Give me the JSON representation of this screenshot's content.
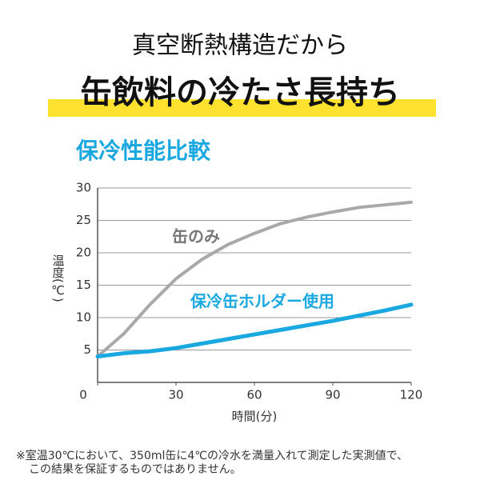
{
  "header": {
    "line1": "真空断熱構造だから",
    "line2": "缶飲料の冷たさ長持ち"
  },
  "chart_data": {
    "type": "line",
    "title": "保冷性能比較",
    "x_label": "時間(分)",
    "y_label": "温度(℃)",
    "x": [
      0,
      10,
      20,
      30,
      40,
      50,
      60,
      70,
      80,
      90,
      100,
      110,
      120
    ],
    "series": [
      {
        "name": "缶のみ",
        "color": "#a9a9a9",
        "values": [
          4,
          7.5,
          12,
          16,
          19,
          21.3,
          23,
          24.5,
          25.5,
          26.3,
          27,
          27.4,
          27.8
        ]
      },
      {
        "name": "保冷缶ホルダー使用",
        "color": "#1aa8e0",
        "values": [
          4,
          4.5,
          4.8,
          5.3,
          6,
          6.7,
          7.4,
          8.1,
          8.8,
          9.5,
          10.3,
          11.1,
          12
        ]
      }
    ],
    "xlim": [
      0,
      120
    ],
    "xticks": [
      0,
      30,
      60,
      90,
      120
    ],
    "ylim": [
      0,
      30
    ],
    "yticks": [
      5,
      10,
      15,
      20,
      25,
      30
    ],
    "grid": true
  },
  "footnote": [
    "※室温30℃において、350ml缶に4℃の冷水を満量入れて測定した実測値で、",
    "この結果を保証するものではありません。"
  ]
}
